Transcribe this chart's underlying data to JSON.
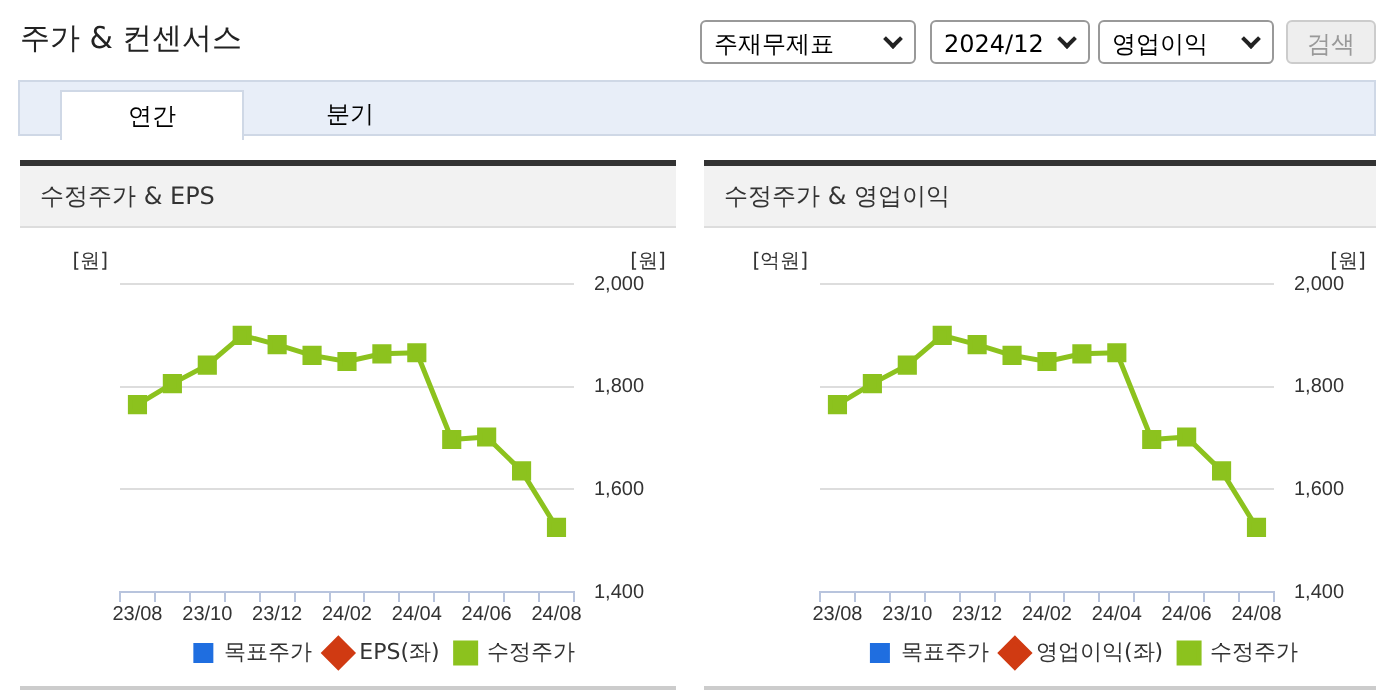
{
  "chart_data": [
    {
      "type": "line",
      "title": "수정주가 & EPS",
      "ylabel": "[원]",
      "y2label": "[원]",
      "annotations": [
        "주가 & 컨센서스",
        "주재무제표",
        "2024/12",
        "영업이익",
        "검색",
        "연간",
        "분기"
      ],
      "categories": [
        "23/08",
        null,
        "23/10",
        null,
        "23/12",
        null,
        "24/02",
        null,
        "24/04",
        null,
        "24/06",
        null,
        "24/08"
      ],
      "series": [
        {
          "name": "목표주가",
          "type": "bar",
          "color": "#1f6ee0",
          "axis": "y2",
          "values": [
            null,
            null,
            null,
            null,
            null,
            null,
            null,
            null,
            null,
            null,
            null,
            null,
            null
          ]
        },
        {
          "name": "EPS(좌)",
          "marker": "diamond",
          "color": "#d03a12",
          "values": [
            null,
            null,
            null,
            null,
            null,
            null,
            null,
            null,
            null,
            null,
            null,
            null,
            null
          ]
        },
        {
          "name": "수정주가",
          "marker": "square",
          "color": "#8cc21e",
          "axis": "y2",
          "values": [
            1765,
            1806,
            1842,
            1900,
            1882,
            1861,
            1849,
            1864,
            1866,
            1697,
            1702,
            1636,
            1526
          ]
        }
      ],
      "y2lim": [
        1400,
        2000
      ],
      "y2ticks": [
        {
          "value": 1400,
          "label": "1,400"
        },
        {
          "value": 1600,
          "label": "1,600"
        },
        {
          "value": 1800,
          "label": "1,800"
        },
        {
          "value": 2000,
          "label": "2,000"
        }
      ],
      "tick_labels": "x",
      "grid": "y",
      "legend": "bottom"
    },
    {
      "type": "line",
      "title": "수정주가 & 영업이익",
      "ylabel": "[억원]",
      "y2label": "[원]",
      "categories": [
        "23/08",
        null,
        "23/10",
        null,
        "23/12",
        null,
        "24/02",
        null,
        "24/04",
        null,
        "24/06",
        null,
        "24/08"
      ],
      "series": [
        {
          "name": "목표주가",
          "type": "bar",
          "color": "#1f6ee0",
          "axis": "y2",
          "values": [
            null,
            null,
            null,
            null,
            null,
            null,
            null,
            null,
            null,
            null,
            null,
            null,
            null
          ]
        },
        {
          "name": "영업이익(좌)",
          "marker": "diamond",
          "color": "#d03a12",
          "values": [
            null,
            null,
            null,
            null,
            null,
            null,
            null,
            null,
            null,
            null,
            null,
            null,
            null
          ]
        },
        {
          "name": "수정주가",
          "marker": "square",
          "color": "#8cc21e",
          "axis": "y2",
          "values": [
            1765,
            1806,
            1842,
            1900,
            1882,
            1861,
            1849,
            1864,
            1866,
            1697,
            1702,
            1636,
            1526
          ]
        }
      ],
      "y2lim": [
        1400,
        2000
      ],
      "y2ticks": [
        {
          "value": 1400,
          "label": "1,400"
        },
        {
          "value": 1600,
          "label": "1,600"
        },
        {
          "value": 1800,
          "label": "1,800"
        },
        {
          "value": 2000,
          "label": "2,000"
        }
      ],
      "tick_labels": "x",
      "grid": "y",
      "legend": "bottom"
    }
  ]
}
